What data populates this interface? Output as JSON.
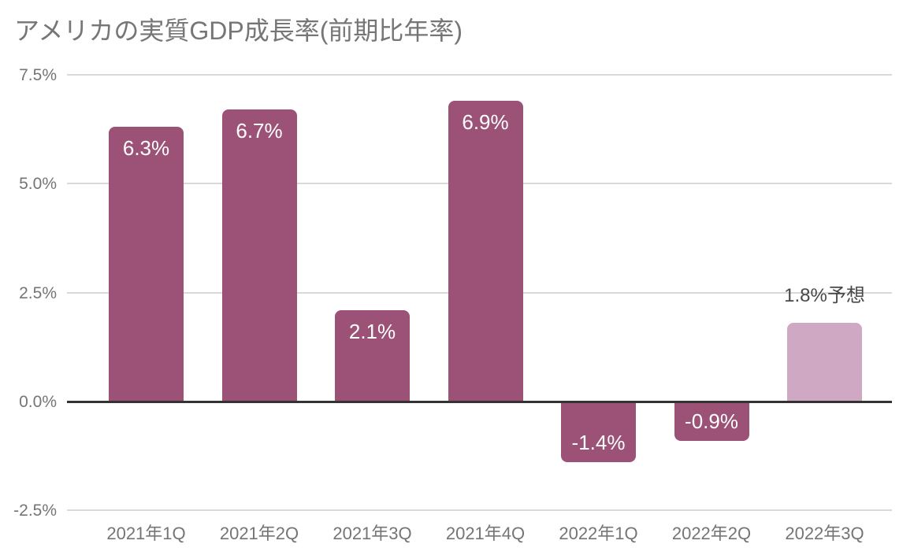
{
  "title": "アメリカの実質GDP成長率(前期比年率)",
  "colors": {
    "background": "#FFFFFF",
    "actual_bar": "#9C5277",
    "forecast_bar": "#CFA9C3",
    "title_text": "#767676",
    "axis_text": "#757575",
    "bar_label_text": "#FFFFFF",
    "forecast_label_text": "#484848",
    "gridline": "#D9D9D9",
    "zero_line": "#333333"
  },
  "chart_data": {
    "type": "bar",
    "title": "アメリカの実質GDP成長率(前期比年率)",
    "xlabel": "",
    "ylabel": "",
    "legend": "none",
    "grid": true,
    "ylim": [
      -2.5,
      7.5
    ],
    "y_ticks": [
      {
        "value": 7.5,
        "label": "7.5%"
      },
      {
        "value": 5.0,
        "label": "5.0%"
      },
      {
        "value": 2.5,
        "label": "2.5%"
      },
      {
        "value": 0.0,
        "label": "0.0%"
      },
      {
        "value": -2.5,
        "label": "-2.5%"
      }
    ],
    "categories": [
      "2021年1Q",
      "2021年2Q",
      "2021年3Q",
      "2021年4Q",
      "2022年1Q",
      "2022年2Q",
      "2022年3Q"
    ],
    "values": [
      6.3,
      6.7,
      2.1,
      6.9,
      -1.4,
      -0.9,
      1.8
    ],
    "data_labels": [
      "6.3%",
      "6.7%",
      "2.1%",
      "6.9%",
      "-1.4%",
      "-0.9%",
      "1.8%予想"
    ],
    "point_styles": [
      "actual",
      "actual",
      "actual",
      "actual",
      "actual",
      "actual",
      "forecast"
    ],
    "label_positions": [
      "inside-top",
      "inside-top",
      "inside-top",
      "inside-top",
      "inside-bottom",
      "inside-bottom",
      "above"
    ]
  }
}
